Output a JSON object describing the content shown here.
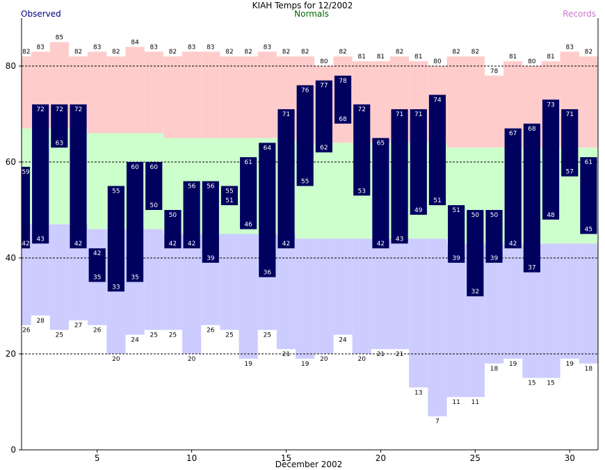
{
  "header": {
    "title": "KIAH Temps for 12/2002",
    "observed_label": "Observed",
    "normals_label": "Normals",
    "records_label": "Records"
  },
  "colors": {
    "observed": "#00005f",
    "record_high_band": "#ffcccc",
    "normal_band": "#ccffcc",
    "record_low_band": "#ccccff",
    "observed_text": "#000080",
    "normals_text": "#006600",
    "records_text": "#cc77cc"
  },
  "chart_data": {
    "type": "bar",
    "title": "KIAH Temps for 12/2002",
    "xlabel": "December 2002",
    "ylabel": "",
    "xlim": [
      1,
      31
    ],
    "ylim": [
      0,
      90
    ],
    "x_ticks": [
      5,
      10,
      15,
      20,
      25,
      30
    ],
    "y_ticks": [
      0,
      20,
      40,
      60,
      80
    ],
    "gridlines_y": [
      20,
      40,
      60,
      80
    ],
    "days": [
      1,
      2,
      3,
      4,
      5,
      6,
      7,
      8,
      9,
      10,
      11,
      12,
      13,
      14,
      15,
      16,
      17,
      18,
      19,
      20,
      21,
      22,
      23,
      24,
      25,
      26,
      27,
      28,
      29,
      30,
      31
    ],
    "observed_high": [
      59,
      72,
      72,
      72,
      42,
      55,
      60,
      60,
      50,
      56,
      56,
      55,
      61,
      64,
      71,
      76,
      77,
      78,
      72,
      65,
      71,
      71,
      74,
      51,
      50,
      50,
      67,
      68,
      73,
      71,
      61
    ],
    "observed_low": [
      42,
      43,
      63,
      42,
      35,
      33,
      35,
      50,
      42,
      42,
      39,
      51,
      46,
      36,
      42,
      55,
      62,
      68,
      53,
      42,
      43,
      49,
      51,
      39,
      32,
      39,
      42,
      37,
      48,
      57,
      45
    ],
    "normal_high": [
      67,
      67,
      67,
      67,
      66,
      66,
      66,
      66,
      65,
      65,
      65,
      65,
      65,
      65,
      65,
      64,
      64,
      64,
      64,
      64,
      64,
      64,
      64,
      63,
      63,
      63,
      63,
      63,
      63,
      63,
      63
    ],
    "normal_low": [
      47,
      47,
      47,
      47,
      46,
      46,
      46,
      46,
      45,
      45,
      45,
      45,
      45,
      45,
      45,
      44,
      44,
      44,
      44,
      44,
      44,
      44,
      44,
      43,
      43,
      43,
      43,
      43,
      43,
      43,
      43
    ],
    "record_high": [
      82,
      83,
      85,
      82,
      83,
      82,
      84,
      83,
      82,
      83,
      83,
      82,
      82,
      83,
      82,
      82,
      80,
      82,
      81,
      81,
      82,
      81,
      80,
      82,
      82,
      78,
      81,
      80,
      81,
      83,
      82
    ],
    "record_low": [
      26,
      28,
      25,
      27,
      26,
      20,
      24,
      25,
      25,
      20,
      26,
      25,
      19,
      25,
      21,
      19,
      20,
      24,
      20,
      21,
      21,
      13,
      7,
      11,
      11,
      18,
      19,
      15,
      15,
      19,
      18
    ],
    "series": [
      {
        "name": "Observed"
      },
      {
        "name": "Normals"
      },
      {
        "name": "Records"
      }
    ]
  }
}
